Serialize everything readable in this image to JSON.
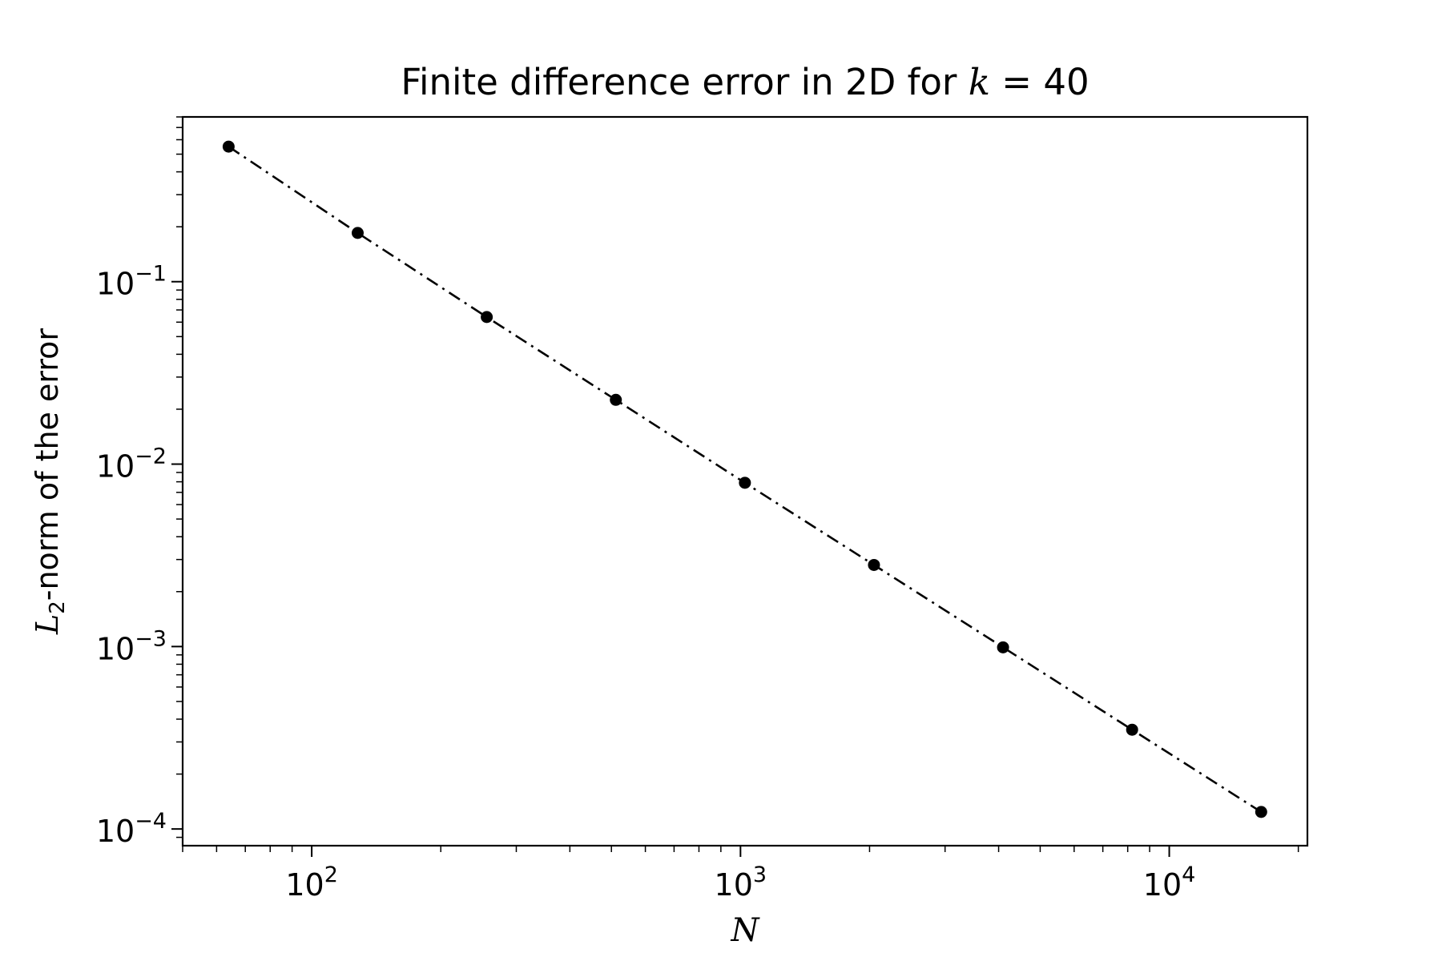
{
  "chart_data": {
    "type": "line",
    "title_prefix": "Finite difference error in 2D for ",
    "title_var": "k",
    "title_eq": " = 40",
    "xlabel": "N",
    "ylabel_var": "L",
    "ylabel_sub": "2",
    "ylabel_rest": "-norm of the error",
    "xscale": "log",
    "yscale": "log",
    "xlim": [
      50,
      21000
    ],
    "ylim": [
      8.1e-05,
      0.8
    ],
    "grid": false,
    "legend": "none",
    "x_ticks": [
      {
        "base": "10",
        "exp": "2",
        "value": 100
      },
      {
        "base": "10",
        "exp": "3",
        "value": 1000
      },
      {
        "base": "10",
        "exp": "4",
        "value": 10000
      }
    ],
    "y_ticks": [
      {
        "base": "10",
        "exp": "−1",
        "value": 0.1
      },
      {
        "base": "10",
        "exp": "−2",
        "value": 0.01
      },
      {
        "base": "10",
        "exp": "−3",
        "value": 0.001
      },
      {
        "base": "10",
        "exp": "−4",
        "value": 0.0001
      }
    ],
    "series": [
      {
        "line_style": "dash-dot",
        "marker": "circle",
        "color": "#000000",
        "x": [
          64,
          128,
          256,
          512,
          1024,
          2048,
          4096,
          8192,
          16384
        ],
        "y": [
          0.55,
          0.185,
          0.064,
          0.0225,
          0.0079,
          0.0028,
          0.00099,
          0.00035,
          0.000124
        ]
      }
    ]
  }
}
